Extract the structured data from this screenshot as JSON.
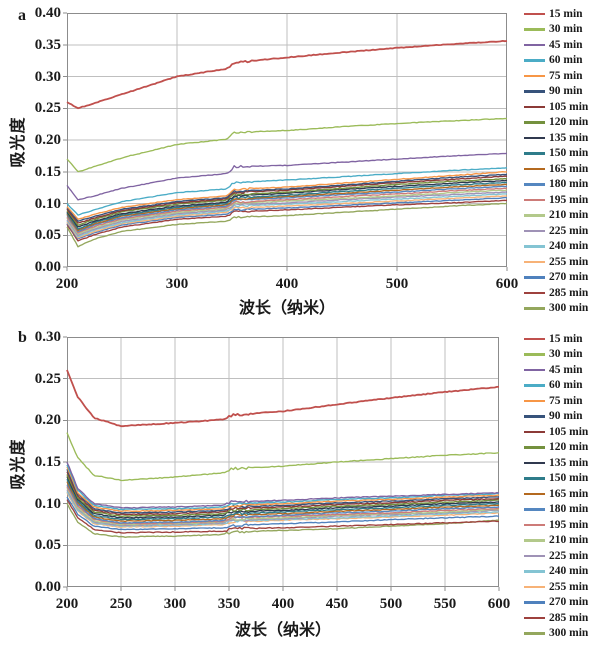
{
  "colors": {
    "grid": "#BFBFBF",
    "axis": "#8C8C8C",
    "text": "#1a1a1a",
    "background": "#ffffff"
  },
  "chart_data": [
    {
      "type": "line",
      "panel_label": "a",
      "ylabel": "吸光度",
      "xlabel": "波长（纳米）",
      "xlim": [
        200,
        600
      ],
      "ylim": [
        0,
        0.4
      ],
      "xticks": [
        200,
        300,
        400,
        500,
        600
      ],
      "yticks": [
        "0.00",
        "0.05",
        "0.10",
        "0.15",
        "0.20",
        "0.25",
        "0.30",
        "0.35",
        "0.40"
      ],
      "grid": true,
      "legend_position": "right",
      "x": [
        200,
        210,
        225,
        250,
        300,
        345,
        352,
        400,
        450,
        500,
        550,
        600
      ],
      "series": [
        {
          "name": "15 min",
          "color": "#C0504D",
          "values": [
            0.26,
            0.25,
            0.258,
            0.272,
            0.3,
            0.312,
            0.322,
            0.33,
            0.338,
            0.345,
            0.351,
            0.356
          ]
        },
        {
          "name": "30 min",
          "color": "#9BBB59",
          "values": [
            0.17,
            0.15,
            0.158,
            0.172,
            0.193,
            0.201,
            0.212,
            0.215,
            0.221,
            0.226,
            0.23,
            0.234
          ]
        },
        {
          "name": "45 min",
          "color": "#8064A2",
          "values": [
            0.128,
            0.106,
            0.112,
            0.124,
            0.14,
            0.147,
            0.158,
            0.16,
            0.165,
            0.17,
            0.175,
            0.179
          ]
        },
        {
          "name": "60 min",
          "color": "#4BACC6",
          "values": [
            0.1,
            0.082,
            0.09,
            0.103,
            0.117,
            0.123,
            0.133,
            0.137,
            0.142,
            0.147,
            0.152,
            0.156
          ]
        },
        {
          "name": "75 min",
          "color": "#F79646",
          "values": [
            0.095,
            0.075,
            0.083,
            0.094,
            0.106,
            0.112,
            0.122,
            0.126,
            0.132,
            0.138,
            0.144,
            0.15
          ]
        },
        {
          "name": "90 min",
          "color": "#37537B",
          "values": [
            0.093,
            0.072,
            0.08,
            0.091,
            0.103,
            0.109,
            0.119,
            0.123,
            0.129,
            0.135,
            0.141,
            0.146
          ]
        },
        {
          "name": "105 min",
          "color": "#8C3A37",
          "values": [
            0.091,
            0.069,
            0.077,
            0.089,
            0.101,
            0.107,
            0.117,
            0.121,
            0.127,
            0.133,
            0.138,
            0.143
          ]
        },
        {
          "name": "120 min",
          "color": "#74913E",
          "values": [
            0.089,
            0.066,
            0.075,
            0.087,
            0.099,
            0.105,
            0.114,
            0.118,
            0.124,
            0.13,
            0.135,
            0.139
          ]
        },
        {
          "name": "135 min",
          "color": "#30394F",
          "values": [
            0.087,
            0.063,
            0.072,
            0.084,
            0.096,
            0.102,
            0.112,
            0.116,
            0.122,
            0.127,
            0.132,
            0.136
          ]
        },
        {
          "name": "150 min",
          "color": "#2E7C8A",
          "values": [
            0.085,
            0.06,
            0.07,
            0.082,
            0.094,
            0.1,
            0.109,
            0.113,
            0.119,
            0.124,
            0.129,
            0.133
          ]
        },
        {
          "name": "165 min",
          "color": "#B4691F",
          "values": [
            0.083,
            0.058,
            0.068,
            0.08,
            0.092,
            0.098,
            0.107,
            0.111,
            0.116,
            0.121,
            0.126,
            0.13
          ]
        },
        {
          "name": "180 min",
          "color": "#5587C0",
          "values": [
            0.081,
            0.056,
            0.066,
            0.078,
            0.09,
            0.096,
            0.105,
            0.109,
            0.114,
            0.118,
            0.123,
            0.127
          ]
        },
        {
          "name": "195 min",
          "color": "#CD7B78",
          "values": [
            0.079,
            0.054,
            0.064,
            0.076,
            0.088,
            0.094,
            0.102,
            0.106,
            0.111,
            0.115,
            0.12,
            0.124
          ]
        },
        {
          "name": "210 min",
          "color": "#B3C98B",
          "values": [
            0.077,
            0.052,
            0.062,
            0.074,
            0.086,
            0.092,
            0.1,
            0.104,
            0.108,
            0.112,
            0.117,
            0.121
          ]
        },
        {
          "name": "225 min",
          "color": "#9F92B6",
          "values": [
            0.075,
            0.05,
            0.06,
            0.072,
            0.084,
            0.09,
            0.098,
            0.101,
            0.106,
            0.11,
            0.114,
            0.118
          ]
        },
        {
          "name": "240 min",
          "color": "#84C4D3",
          "values": [
            0.073,
            0.048,
            0.058,
            0.07,
            0.082,
            0.088,
            0.096,
            0.099,
            0.103,
            0.107,
            0.111,
            0.115
          ]
        },
        {
          "name": "255 min",
          "color": "#F7B277",
          "values": [
            0.071,
            0.046,
            0.056,
            0.068,
            0.08,
            0.086,
            0.093,
            0.096,
            0.1,
            0.104,
            0.108,
            0.112
          ]
        },
        {
          "name": "270 min",
          "color": "#4F81BD",
          "values": [
            0.069,
            0.044,
            0.054,
            0.066,
            0.078,
            0.083,
            0.09,
            0.093,
            0.097,
            0.101,
            0.105,
            0.109
          ]
        },
        {
          "name": "285 min",
          "color": "#9E413E",
          "values": [
            0.067,
            0.041,
            0.051,
            0.063,
            0.075,
            0.08,
            0.087,
            0.09,
            0.094,
            0.098,
            0.101,
            0.105
          ]
        },
        {
          "name": "300 min",
          "color": "#94A75D",
          "values": [
            0.063,
            0.032,
            0.044,
            0.056,
            0.067,
            0.072,
            0.078,
            0.081,
            0.086,
            0.091,
            0.096,
            0.1
          ]
        }
      ]
    },
    {
      "type": "line",
      "panel_label": "b",
      "ylabel": "吸光度",
      "xlabel": "波长（纳米）",
      "xlim": [
        200,
        600
      ],
      "ylim": [
        0,
        0.3
      ],
      "xticks": [
        200,
        250,
        300,
        350,
        400,
        450,
        500,
        550,
        600
      ],
      "yticks": [
        "0.00",
        "0.05",
        "0.10",
        "0.15",
        "0.20",
        "0.25",
        "0.30"
      ],
      "grid": true,
      "legend_position": "right",
      "x": [
        200,
        210,
        225,
        250,
        300,
        345,
        352,
        400,
        450,
        500,
        550,
        600
      ],
      "series": [
        {
          "name": "15 min",
          "color": "#C0504D",
          "values": [
            0.26,
            0.228,
            0.203,
            0.193,
            0.197,
            0.201,
            0.206,
            0.211,
            0.219,
            0.227,
            0.234,
            0.24
          ]
        },
        {
          "name": "30 min",
          "color": "#9BBB59",
          "values": [
            0.185,
            0.155,
            0.134,
            0.128,
            0.132,
            0.137,
            0.142,
            0.145,
            0.15,
            0.154,
            0.158,
            0.161
          ]
        },
        {
          "name": "45 min",
          "color": "#8064A2",
          "values": [
            0.15,
            0.118,
            0.1,
            0.095,
            0.096,
            0.098,
            0.102,
            0.104,
            0.107,
            0.109,
            0.111,
            0.113
          ]
        },
        {
          "name": "60 min",
          "color": "#4BACC6",
          "values": [
            0.147,
            0.116,
            0.098,
            0.093,
            0.094,
            0.096,
            0.1,
            0.102,
            0.105,
            0.107,
            0.11,
            0.112
          ]
        },
        {
          "name": "75 min",
          "color": "#F79646",
          "values": [
            0.144,
            0.113,
            0.096,
            0.091,
            0.092,
            0.094,
            0.098,
            0.1,
            0.103,
            0.105,
            0.108,
            0.11
          ]
        },
        {
          "name": "90 min",
          "color": "#37537B",
          "values": [
            0.141,
            0.111,
            0.094,
            0.089,
            0.09,
            0.092,
            0.096,
            0.098,
            0.101,
            0.103,
            0.106,
            0.108
          ]
        },
        {
          "name": "105 min",
          "color": "#8C3A37",
          "values": [
            0.138,
            0.109,
            0.092,
            0.087,
            0.088,
            0.09,
            0.094,
            0.096,
            0.099,
            0.101,
            0.104,
            0.106
          ]
        },
        {
          "name": "120 min",
          "color": "#74913E",
          "values": [
            0.135,
            0.107,
            0.09,
            0.085,
            0.086,
            0.088,
            0.092,
            0.094,
            0.097,
            0.099,
            0.102,
            0.104
          ]
        },
        {
          "name": "135 min",
          "color": "#30394F",
          "values": [
            0.132,
            0.105,
            0.088,
            0.083,
            0.084,
            0.086,
            0.09,
            0.092,
            0.095,
            0.097,
            0.1,
            0.102
          ]
        },
        {
          "name": "150 min",
          "color": "#2E7C8A",
          "values": [
            0.129,
            0.103,
            0.086,
            0.081,
            0.082,
            0.084,
            0.088,
            0.09,
            0.093,
            0.095,
            0.098,
            0.1
          ]
        },
        {
          "name": "165 min",
          "color": "#B4691F",
          "values": [
            0.126,
            0.101,
            0.084,
            0.079,
            0.08,
            0.082,
            0.086,
            0.088,
            0.091,
            0.093,
            0.096,
            0.098
          ]
        },
        {
          "name": "180 min",
          "color": "#5587C0",
          "values": [
            0.123,
            0.099,
            0.082,
            0.077,
            0.078,
            0.08,
            0.084,
            0.086,
            0.089,
            0.091,
            0.094,
            0.096
          ]
        },
        {
          "name": "195 min",
          "color": "#CD7B78",
          "values": [
            0.121,
            0.097,
            0.081,
            0.076,
            0.077,
            0.079,
            0.083,
            0.085,
            0.087,
            0.089,
            0.092,
            0.094
          ]
        },
        {
          "name": "210 min",
          "color": "#B3C98B",
          "values": [
            0.119,
            0.095,
            0.079,
            0.075,
            0.076,
            0.078,
            0.081,
            0.083,
            0.086,
            0.088,
            0.09,
            0.093
          ]
        },
        {
          "name": "225 min",
          "color": "#9F92B6",
          "values": [
            0.117,
            0.094,
            0.078,
            0.074,
            0.075,
            0.077,
            0.08,
            0.082,
            0.085,
            0.087,
            0.089,
            0.092
          ]
        },
        {
          "name": "240 min",
          "color": "#84C4D3",
          "values": [
            0.115,
            0.092,
            0.077,
            0.073,
            0.074,
            0.076,
            0.079,
            0.081,
            0.083,
            0.085,
            0.088,
            0.09
          ]
        },
        {
          "name": "255 min",
          "color": "#F7B277",
          "values": [
            0.113,
            0.091,
            0.076,
            0.072,
            0.073,
            0.075,
            0.078,
            0.08,
            0.082,
            0.084,
            0.086,
            0.089
          ]
        },
        {
          "name": "270 min",
          "color": "#4F81BD",
          "values": [
            0.108,
            0.087,
            0.073,
            0.069,
            0.07,
            0.071,
            0.074,
            0.076,
            0.078,
            0.081,
            0.083,
            0.085
          ]
        },
        {
          "name": "285 min",
          "color": "#9E413E",
          "values": [
            0.105,
            0.083,
            0.069,
            0.065,
            0.066,
            0.067,
            0.07,
            0.071,
            0.073,
            0.075,
            0.077,
            0.079
          ]
        },
        {
          "name": "300 min",
          "color": "#94A75D",
          "values": [
            0.1,
            0.078,
            0.064,
            0.06,
            0.061,
            0.063,
            0.066,
            0.068,
            0.07,
            0.073,
            0.076,
            0.08
          ]
        }
      ]
    }
  ]
}
